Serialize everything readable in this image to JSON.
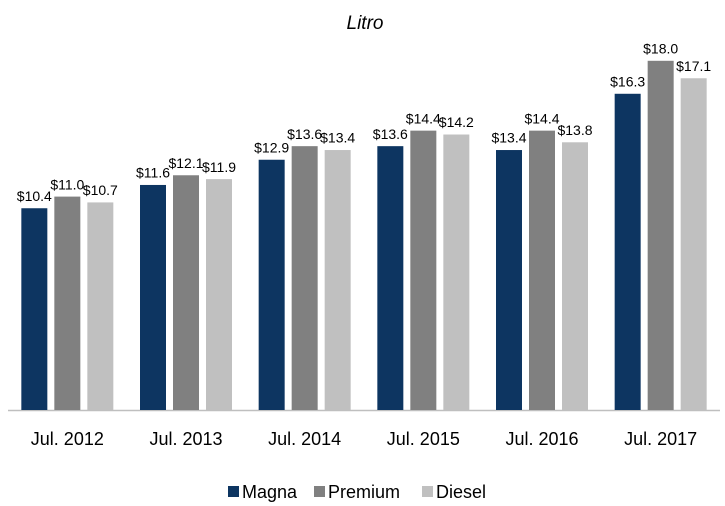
{
  "chart_data": {
    "type": "bar",
    "title": "Litro",
    "categories": [
      "Jul. 2012",
      "Jul. 2013",
      "Jul. 2014",
      "Jul. 2015",
      "Jul. 2016",
      "Jul. 2017"
    ],
    "series": [
      {
        "name": "Magna",
        "color": "#0d3561",
        "values": [
          10.4,
          11.6,
          12.9,
          13.6,
          13.4,
          16.3
        ],
        "value_labels": [
          "$10.4",
          "$11.6",
          "$12.9",
          "$13.6",
          "$13.4",
          "$16.3"
        ]
      },
      {
        "name": "Premium",
        "color": "#808080",
        "values": [
          11.0,
          12.1,
          13.6,
          14.4,
          14.4,
          18.0
        ],
        "value_labels": [
          "$11.0",
          "$12.1",
          "$13.6",
          "$14.4",
          "$14.4",
          "$18.0"
        ]
      },
      {
        "name": "Diesel",
        "color": "#c0c0c0",
        "values": [
          10.7,
          11.9,
          13.4,
          14.2,
          13.8,
          17.1
        ],
        "value_labels": [
          "$10.7",
          "$11.9",
          "$13.4",
          "$14.2",
          "$13.8",
          "$17.1"
        ]
      }
    ],
    "ylim": [
      0,
      20
    ],
    "legend": "bottom"
  }
}
